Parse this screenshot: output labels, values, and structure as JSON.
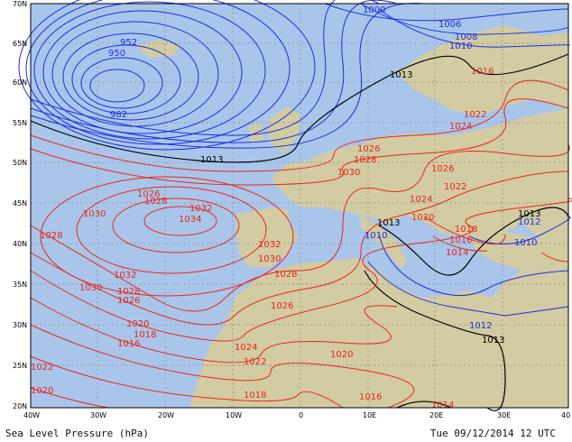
{
  "footer": {
    "title": "Sea Level Pressure (hPa)",
    "valid_time": "Tue 09/12/2014 12 UTC"
  },
  "map": {
    "lat_labels": [
      "70N",
      "65N",
      "60N",
      "55N",
      "50N",
      "45N",
      "40N",
      "35N",
      "30N",
      "25N",
      "20N"
    ],
    "lon_labels": [
      "40W",
      "30W",
      "20W",
      "10W",
      "0",
      "10E",
      "20E",
      "30E",
      "40"
    ],
    "colors": {
      "ocean": "#a9c6ea",
      "land": "#d3cba2",
      "low": "#1b2fe0",
      "high": "#e8261d",
      "mean": "#000000",
      "grid": "#8a8a8a"
    },
    "isobar_labels": [
      {
        "text": "1000",
        "color": "low"
      },
      {
        "text": "1006",
        "color": "low"
      },
      {
        "text": "1008",
        "color": "low"
      },
      {
        "text": "1010",
        "color": "low"
      },
      {
        "text": "950",
        "color": "low"
      },
      {
        "text": "952",
        "color": "low"
      },
      {
        "text": "982",
        "color": "low"
      },
      {
        "text": "1013",
        "color": "mean"
      },
      {
        "text": "1016",
        "color": "high"
      },
      {
        "text": "1022",
        "color": "high"
      },
      {
        "text": "1024",
        "color": "high"
      },
      {
        "text": "1026",
        "color": "high"
      },
      {
        "text": "1028",
        "color": "high"
      },
      {
        "text": "1030",
        "color": "high"
      },
      {
        "text": "1032",
        "color": "high"
      },
      {
        "text": "1034",
        "color": "high"
      },
      {
        "text": "1020",
        "color": "high"
      },
      {
        "text": "1018",
        "color": "high"
      },
      {
        "text": "1014",
        "color": "high"
      },
      {
        "text": "1012",
        "color": "low"
      },
      {
        "text": "1010",
        "color": "low"
      }
    ]
  }
}
